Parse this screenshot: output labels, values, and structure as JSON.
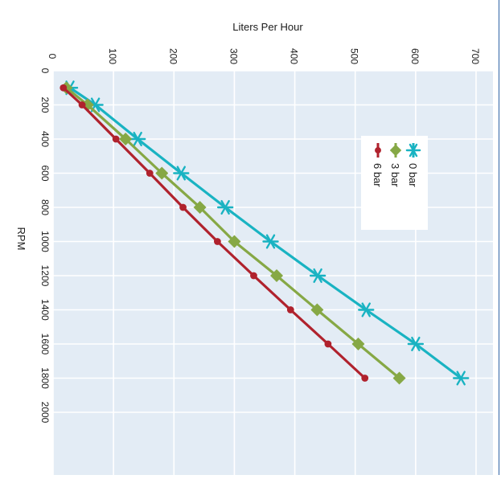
{
  "chart_data": {
    "type": "line",
    "xlabel": "RPM",
    "ylabel": "Liters Per Hour",
    "xlim": [
      0,
      2000
    ],
    "ylim": [
      0,
      700
    ],
    "x_ticks": [
      "0",
      "200",
      "400",
      "600",
      "800",
      "1000",
      "1200",
      "1400",
      "1600",
      "1800",
      "2000"
    ],
    "y_ticks": [
      "0",
      "100",
      "200",
      "300",
      "400",
      "500",
      "600",
      "700"
    ],
    "grid": true,
    "legend_position": "top-right",
    "orientation": "rotated-90-clockwise",
    "background_color": "#e3ecf5",
    "series": [
      {
        "name": "0 bar",
        "color": "#19b3c2",
        "marker": "asterisk",
        "x": [
          100,
          200,
          400,
          600,
          800,
          1000,
          1200,
          1400,
          1600,
          1800
        ],
        "values": [
          28,
          70,
          140,
          212,
          285,
          360,
          438,
          518,
          600,
          675
        ]
      },
      {
        "name": "3 bar",
        "color": "#86a845",
        "marker": "diamond",
        "x": [
          100,
          200,
          400,
          600,
          800,
          1000,
          1200,
          1400,
          1600,
          1800
        ],
        "values": [
          22,
          57,
          120,
          180,
          243,
          300,
          370,
          437,
          505,
          573
        ]
      },
      {
        "name": "6 bar",
        "color": "#b0222d",
        "marker": "circle",
        "x": [
          100,
          200,
          400,
          600,
          800,
          1000,
          1200,
          1400,
          1600,
          1800
        ],
        "values": [
          17,
          48,
          104,
          160,
          215,
          272,
          332,
          393,
          455,
          516
        ]
      }
    ]
  }
}
